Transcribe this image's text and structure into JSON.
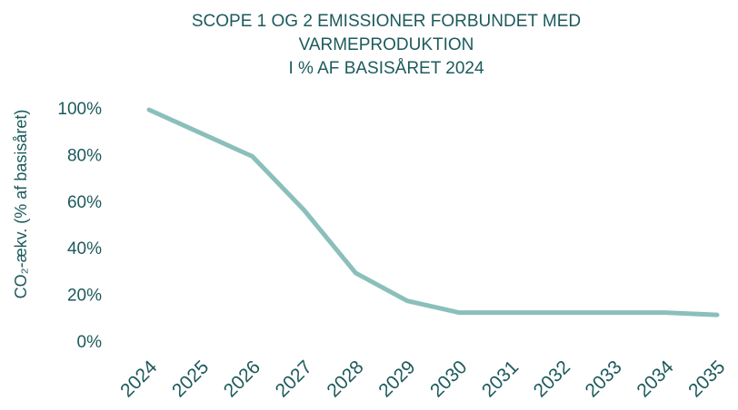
{
  "chart_data": {
    "type": "line",
    "title": [
      "SCOPE 1 OG 2 EMISSIONER FORBUNDET MED",
      "VARMEPRODUKTION",
      "I % AF BASISÅRET 2024"
    ],
    "y_label": "CO₂-ækv. (% af basisåret)",
    "categories": [
      "2024",
      "2025",
      "2026",
      "2027",
      "2028",
      "2029",
      "2030",
      "2031",
      "2032",
      "2033",
      "2034",
      "2035"
    ],
    "series": [
      {
        "name": "Scope 1 og 2",
        "color": "#8bbfbb",
        "values": [
          100,
          90,
          80,
          57,
          30,
          18,
          13,
          13,
          13,
          13,
          13,
          12
        ]
      }
    ],
    "ylim": [
      0,
      100
    ],
    "yticks": [
      {
        "value": 0,
        "label": "0%"
      },
      {
        "value": 20,
        "label": "20%"
      },
      {
        "value": 40,
        "label": "40%"
      },
      {
        "value": 60,
        "label": "60%"
      },
      {
        "value": 80,
        "label": "80%"
      },
      {
        "value": 100,
        "label": "100%"
      }
    ],
    "grid": false
  }
}
